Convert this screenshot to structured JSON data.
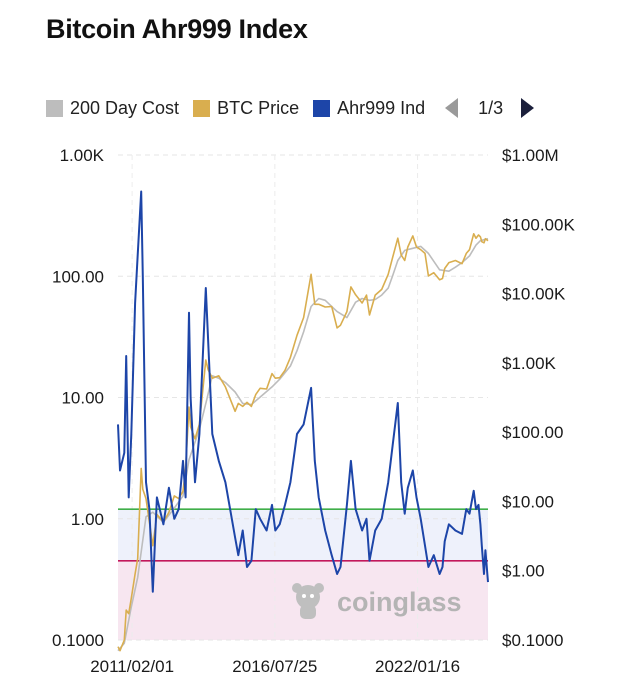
{
  "title": "Bitcoin Ahr999 Index",
  "legend": {
    "items": [
      {
        "label": "200 Day Cost",
        "color": "#bdbdbd"
      },
      {
        "label": "BTC Price",
        "color": "#d9ae4f"
      },
      {
        "label": "Ahr999 Ind",
        "color": "#1d45a8"
      }
    ],
    "page": "1/3",
    "prev_icon": "triangle-left-icon",
    "next_icon": "triangle-right-icon"
  },
  "watermark": {
    "text": "coinglass",
    "icon": "coinglass-mascot-icon"
  },
  "chart_data": {
    "type": "line",
    "title": "Bitcoin Ahr999 Index",
    "x_ticks": [
      "2011/02/01",
      "2016/07/25",
      "2022/01/16"
    ],
    "x_range": [
      "2010-07-18",
      "2024-09-30"
    ],
    "left_axis": {
      "scale": "log",
      "range": [
        0.1,
        1000
      ],
      "tick_labels": [
        "1.00K",
        "100.00",
        "10.00",
        "1.00",
        "0.1000"
      ]
    },
    "right_axis": {
      "scale": "log",
      "range": [
        0.1,
        1000000
      ],
      "tick_labels": [
        "$1.00M",
        "$100.00K",
        "$10.00K",
        "$1.00K",
        "$100.00",
        "$10.00",
        "$1.00",
        "$0.1000"
      ]
    },
    "grid": true,
    "legend_position": "top",
    "reference_lines": [
      {
        "value": 1.2,
        "color": "#3fae49"
      },
      {
        "value": 0.45,
        "color": "#c2185b"
      }
    ],
    "zones": [
      {
        "from": 0.45,
        "to": 1.2,
        "color": "#eef1fb"
      },
      {
        "from": 0.1,
        "to": 0.45,
        "color": "#f7e6f0"
      }
    ],
    "series": [
      {
        "name": "Ahr999 Ind",
        "axis": "left",
        "color": "#1d45a8",
        "points": [
          [
            "2010-07-18",
            6
          ],
          [
            "2010-08-15",
            2.5
          ],
          [
            "2010-10-15",
            3.5
          ],
          [
            "2010-11-10",
            22
          ],
          [
            "2010-12-15",
            1.5
          ],
          [
            "2011-01-20",
            5
          ],
          [
            "2011-03-15",
            60
          ],
          [
            "2011-04-20",
            150
          ],
          [
            "2011-06-08",
            500
          ],
          [
            "2011-07-01",
            100
          ],
          [
            "2011-08-15",
            2
          ],
          [
            "2011-10-01",
            1.2
          ],
          [
            "2011-11-18",
            0.25
          ],
          [
            "2012-01-15",
            1.5
          ],
          [
            "2012-04-15",
            0.9
          ],
          [
            "2012-07-01",
            1.8
          ],
          [
            "2012-09-15",
            1
          ],
          [
            "2012-11-15",
            1.2
          ],
          [
            "2013-01-15",
            3
          ],
          [
            "2013-02-20",
            1.5
          ],
          [
            "2013-04-09",
            50
          ],
          [
            "2013-05-01",
            10
          ],
          [
            "2013-07-01",
            2
          ],
          [
            "2013-09-01",
            5
          ],
          [
            "2013-11-30",
            80
          ],
          [
            "2014-01-01",
            30
          ],
          [
            "2014-03-01",
            5
          ],
          [
            "2014-06-01",
            3
          ],
          [
            "2014-09-01",
            2
          ],
          [
            "2015-01-15",
            0.7
          ],
          [
            "2015-03-01",
            0.5
          ],
          [
            "2015-05-01",
            0.8
          ],
          [
            "2015-07-01",
            0.4
          ],
          [
            "2015-09-01",
            0.45
          ],
          [
            "2015-11-01",
            1.2
          ],
          [
            "2016-01-01",
            1
          ],
          [
            "2016-04-01",
            0.8
          ],
          [
            "2016-06-15",
            1.3
          ],
          [
            "2016-08-01",
            0.8
          ],
          [
            "2016-10-01",
            0.9
          ],
          [
            "2016-12-15",
            1.3
          ],
          [
            "2017-03-01",
            2
          ],
          [
            "2017-06-01",
            5
          ],
          [
            "2017-09-01",
            6
          ],
          [
            "2017-12-15",
            12
          ],
          [
            "2018-02-06",
            3
          ],
          [
            "2018-04-01",
            1.5
          ],
          [
            "2018-07-01",
            0.8
          ],
          [
            "2018-10-01",
            0.5
          ],
          [
            "2018-12-15",
            0.35
          ],
          [
            "2019-02-01",
            0.4
          ],
          [
            "2019-05-01",
            1.3
          ],
          [
            "2019-06-26",
            3
          ],
          [
            "2019-09-01",
            1.2
          ],
          [
            "2019-12-01",
            0.8
          ],
          [
            "2020-02-01",
            1
          ],
          [
            "2020-03-13",
            0.45
          ],
          [
            "2020-06-01",
            0.8
          ],
          [
            "2020-09-01",
            1
          ],
          [
            "2020-12-01",
            2
          ],
          [
            "2021-02-01",
            4
          ],
          [
            "2021-04-14",
            9
          ],
          [
            "2021-06-01",
            2
          ],
          [
            "2021-07-20",
            1.1
          ],
          [
            "2021-09-01",
            1.8
          ],
          [
            "2021-11-10",
            2.5
          ],
          [
            "2022-01-01",
            1.5
          ],
          [
            "2022-03-01",
            1
          ],
          [
            "2022-05-01",
            0.6
          ],
          [
            "2022-06-18",
            0.4
          ],
          [
            "2022-09-01",
            0.5
          ],
          [
            "2022-11-21",
            0.35
          ],
          [
            "2023-01-01",
            0.4
          ],
          [
            "2023-02-01",
            0.65
          ],
          [
            "2023-04-01",
            0.9
          ],
          [
            "2023-07-01",
            0.8
          ],
          [
            "2023-10-01",
            0.75
          ],
          [
            "2023-12-01",
            1.2
          ],
          [
            "2024-01-15",
            1.1
          ],
          [
            "2024-03-14",
            1.7
          ],
          [
            "2024-04-15",
            1.2
          ],
          [
            "2024-05-20",
            1.3
          ],
          [
            "2024-06-15",
            0.9
          ],
          [
            "2024-07-05",
            0.6
          ],
          [
            "2024-08-05",
            0.35
          ],
          [
            "2024-08-25",
            0.55
          ],
          [
            "2024-09-30",
            0.3
          ]
        ]
      },
      {
        "name": "BTC Price",
        "axis": "right",
        "color": "#d9ae4f",
        "points": [
          [
            "2010-07-18",
            0.08
          ],
          [
            "2010-08-15",
            0.07
          ],
          [
            "2010-10-15",
            0.1
          ],
          [
            "2010-11-10",
            0.27
          ],
          [
            "2010-12-15",
            0.24
          ],
          [
            "2011-01-20",
            0.4
          ],
          [
            "2011-03-15",
            0.9
          ],
          [
            "2011-04-20",
            1.5
          ],
          [
            "2011-06-08",
            30
          ],
          [
            "2011-07-01",
            15
          ],
          [
            "2011-08-15",
            11
          ],
          [
            "2011-10-01",
            5
          ],
          [
            "2011-11-18",
            2.3
          ],
          [
            "2012-01-15",
            6.5
          ],
          [
            "2012-04-15",
            5
          ],
          [
            "2012-07-01",
            7
          ],
          [
            "2012-09-15",
            12
          ],
          [
            "2012-11-15",
            11
          ],
          [
            "2013-01-15",
            14
          ],
          [
            "2013-02-20",
            30
          ],
          [
            "2013-04-09",
            230
          ],
          [
            "2013-05-01",
            120
          ],
          [
            "2013-07-01",
            80
          ],
          [
            "2013-09-01",
            130
          ],
          [
            "2013-11-30",
            1100
          ],
          [
            "2014-01-01",
            800
          ],
          [
            "2014-03-01",
            600
          ],
          [
            "2014-06-01",
            650
          ],
          [
            "2014-09-01",
            450
          ],
          [
            "2015-01-15",
            200
          ],
          [
            "2015-03-01",
            260
          ],
          [
            "2015-05-01",
            235
          ],
          [
            "2015-07-01",
            270
          ],
          [
            "2015-09-01",
            235
          ],
          [
            "2015-11-01",
            350
          ],
          [
            "2016-01-01",
            430
          ],
          [
            "2016-04-01",
            420
          ],
          [
            "2016-06-15",
            700
          ],
          [
            "2016-08-01",
            600
          ],
          [
            "2016-10-01",
            610
          ],
          [
            "2016-12-15",
            780
          ],
          [
            "2017-03-01",
            1200
          ],
          [
            "2017-06-01",
            2500
          ],
          [
            "2017-09-01",
            4500
          ],
          [
            "2017-12-15",
            19000
          ],
          [
            "2018-02-06",
            7000
          ],
          [
            "2018-04-01",
            7000
          ],
          [
            "2018-07-01",
            6400
          ],
          [
            "2018-10-01",
            6500
          ],
          [
            "2018-12-15",
            3200
          ],
          [
            "2019-02-01",
            3500
          ],
          [
            "2019-05-01",
            5500
          ],
          [
            "2019-06-26",
            12500
          ],
          [
            "2019-09-01",
            9600
          ],
          [
            "2019-12-01",
            7300
          ],
          [
            "2020-02-01",
            9500
          ],
          [
            "2020-03-13",
            4900
          ],
          [
            "2020-06-01",
            9500
          ],
          [
            "2020-09-01",
            11500
          ],
          [
            "2020-12-01",
            19000
          ],
          [
            "2021-02-01",
            33000
          ],
          [
            "2021-04-14",
            63000
          ],
          [
            "2021-06-01",
            36000
          ],
          [
            "2021-07-20",
            30000
          ],
          [
            "2021-09-01",
            47000
          ],
          [
            "2021-11-10",
            68000
          ],
          [
            "2022-01-01",
            47000
          ],
          [
            "2022-03-01",
            43000
          ],
          [
            "2022-05-01",
            38000
          ],
          [
            "2022-06-18",
            18000
          ],
          [
            "2022-09-01",
            20000
          ],
          [
            "2022-11-21",
            15800
          ],
          [
            "2023-01-01",
            16500
          ],
          [
            "2023-02-01",
            23000
          ],
          [
            "2023-04-01",
            28000
          ],
          [
            "2023-07-01",
            30000
          ],
          [
            "2023-10-01",
            27000
          ],
          [
            "2023-12-01",
            38000
          ],
          [
            "2024-01-15",
            43000
          ],
          [
            "2024-03-14",
            73000
          ],
          [
            "2024-04-15",
            63000
          ],
          [
            "2024-05-20",
            70000
          ],
          [
            "2024-06-15",
            66000
          ],
          [
            "2024-07-05",
            56000
          ],
          [
            "2024-08-05",
            54000
          ],
          [
            "2024-08-25",
            62000
          ],
          [
            "2024-09-30",
            58000
          ]
        ]
      },
      {
        "name": "200 Day Cost",
        "axis": "right",
        "color": "#bdbdbd",
        "points": [
          [
            "2010-07-18",
            0.07
          ],
          [
            "2010-10-15",
            0.09
          ],
          [
            "2011-01-20",
            0.3
          ],
          [
            "2011-04-20",
            0.8
          ],
          [
            "2011-08-15",
            6
          ],
          [
            "2011-11-18",
            7
          ],
          [
            "2012-04-15",
            5
          ],
          [
            "2012-09-15",
            8
          ],
          [
            "2013-01-15",
            12
          ],
          [
            "2013-04-09",
            40
          ],
          [
            "2013-09-01",
            110
          ],
          [
            "2013-12-15",
            300
          ],
          [
            "2014-03-01",
            650
          ],
          [
            "2014-06-01",
            600
          ],
          [
            "2014-09-01",
            520
          ],
          [
            "2015-01-15",
            380
          ],
          [
            "2015-05-01",
            260
          ],
          [
            "2015-09-01",
            250
          ],
          [
            "2016-01-01",
            320
          ],
          [
            "2016-06-15",
            450
          ],
          [
            "2016-10-01",
            580
          ],
          [
            "2017-03-01",
            900
          ],
          [
            "2017-06-01",
            1500
          ],
          [
            "2017-09-01",
            2800
          ],
          [
            "2017-12-15",
            6500
          ],
          [
            "2018-04-01",
            8500
          ],
          [
            "2018-07-01",
            8000
          ],
          [
            "2018-12-15",
            5500
          ],
          [
            "2019-05-01",
            4500
          ],
          [
            "2019-09-01",
            7500
          ],
          [
            "2019-12-01",
            8500
          ],
          [
            "2020-03-13",
            8000
          ],
          [
            "2020-06-01",
            8200
          ],
          [
            "2020-09-01",
            9500
          ],
          [
            "2020-12-01",
            12000
          ],
          [
            "2021-02-01",
            18000
          ],
          [
            "2021-04-14",
            30000
          ],
          [
            "2021-07-20",
            42000
          ],
          [
            "2021-11-10",
            45000
          ],
          [
            "2022-03-01",
            48000
          ],
          [
            "2022-06-18",
            38000
          ],
          [
            "2022-11-21",
            22000
          ],
          [
            "2023-04-01",
            21000
          ],
          [
            "2023-07-01",
            24000
          ],
          [
            "2023-10-01",
            28000
          ],
          [
            "2024-01-15",
            35000
          ],
          [
            "2024-04-15",
            50000
          ],
          [
            "2024-06-15",
            58000
          ],
          [
            "2024-09-30",
            62000
          ]
        ]
      }
    ]
  }
}
